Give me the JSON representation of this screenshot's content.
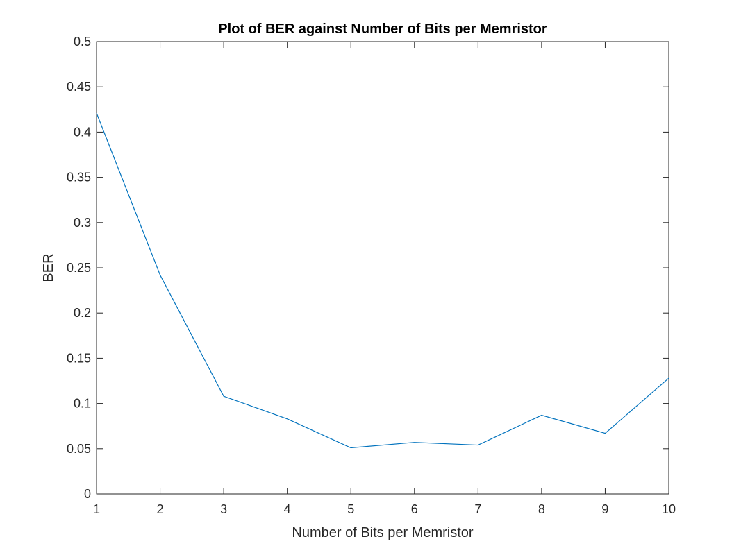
{
  "chart_data": {
    "type": "line",
    "title": "Plot of BER against Number of Bits per Memristor",
    "xlabel": "Number of Bits per Memristor",
    "ylabel": "BER",
    "xlim": [
      1,
      10
    ],
    "ylim": [
      0,
      0.5
    ],
    "x_ticks": [
      "1",
      "2",
      "3",
      "4",
      "5",
      "6",
      "7",
      "8",
      "9",
      "10"
    ],
    "y_ticks": [
      "0",
      "0.05",
      "0.1",
      "0.15",
      "0.2",
      "0.25",
      "0.3",
      "0.35",
      "0.4",
      "0.45",
      "0.5"
    ],
    "grid": false,
    "box": true,
    "series": [
      {
        "x": [
          1,
          2,
          3,
          4,
          5,
          6,
          7,
          8,
          9,
          10
        ],
        "values": [
          0.421,
          0.242,
          0.108,
          0.083,
          0.051,
          0.057,
          0.054,
          0.087,
          0.067,
          0.128
        ],
        "color": "#0072BD"
      }
    ]
  }
}
